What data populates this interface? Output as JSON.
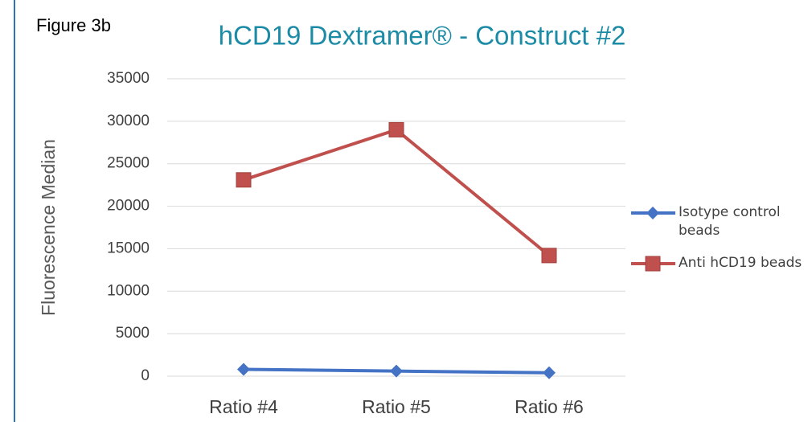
{
  "chart_data": {
    "type": "line",
    "figure_label": "Figure 3b",
    "title": "hCD19 Dextramer® - Construct #2",
    "y_label": "Fluorescence Median",
    "categories": [
      "Ratio #4",
      "Ratio #5",
      "Ratio #6"
    ],
    "series": [
      {
        "name": "Isotype control beads",
        "color": "#4472c4",
        "marker": "diamond",
        "values": [
          800,
          600,
          400
        ]
      },
      {
        "name": "Anti hCD19 beads",
        "color": "#c0504d",
        "marker": "square",
        "values": [
          23100,
          29000,
          14200
        ]
      }
    ],
    "ylim": [
      0,
      35000
    ],
    "yticks": [
      0,
      5000,
      10000,
      15000,
      20000,
      25000,
      30000,
      35000
    ],
    "grid": true,
    "legend": "right"
  }
}
